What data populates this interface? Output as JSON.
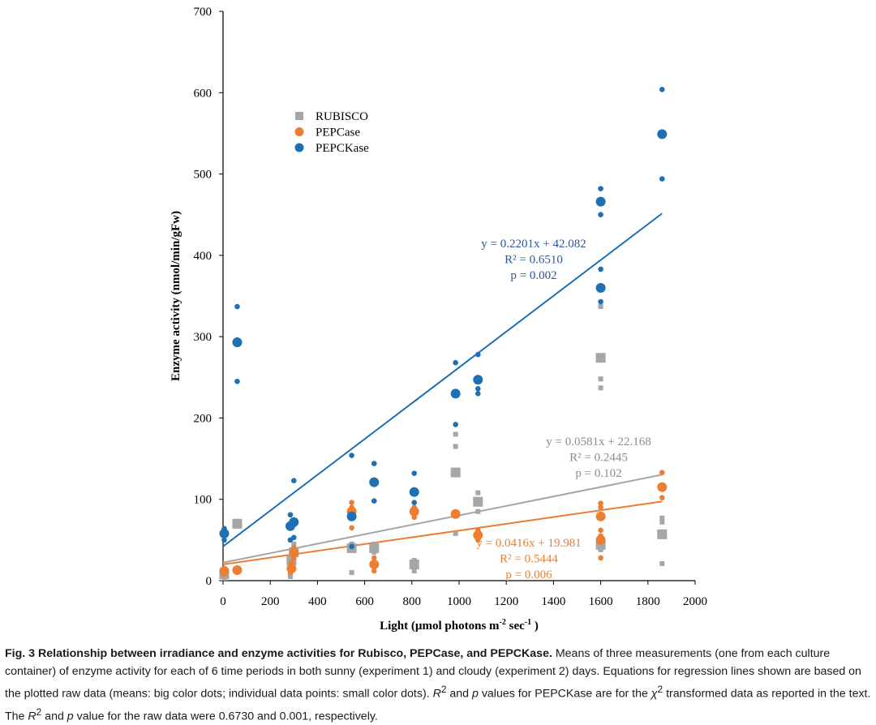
{
  "chart_data": {
    "type": "scatter",
    "xlabel": "Light (µmol photons m",
    "xlabel_sup": "-2",
    "xlabel_mid": " sec",
    "xlabel_sup2": "-1",
    "xlabel_end": " )",
    "ylabel": "Enzyme activity (nmol/min/gFw)",
    "xlim": [
      0,
      2000
    ],
    "ylim": [
      0,
      700
    ],
    "xticks": [
      0,
      200,
      400,
      600,
      800,
      1000,
      1200,
      1400,
      1600,
      1800,
      2000
    ],
    "yticks": [
      0,
      100,
      200,
      300,
      400,
      500,
      600,
      700
    ],
    "legend_position": "upper-left",
    "series": [
      {
        "name": "RUBISCO",
        "color": "#a6a6a6",
        "marker": "square",
        "means": [
          [
            5,
            8
          ],
          [
            60,
            70
          ],
          [
            290,
            25
          ],
          [
            300,
            35
          ],
          [
            545,
            40
          ],
          [
            640,
            40
          ],
          [
            810,
            20
          ],
          [
            985,
            133
          ],
          [
            1080,
            97
          ],
          [
            1600,
            274
          ],
          [
            1600,
            44
          ],
          [
            1860,
            57
          ]
        ],
        "points": [
          [
            5,
            3
          ],
          [
            5,
            12
          ],
          [
            60,
            67
          ],
          [
            60,
            73
          ],
          [
            285,
            5
          ],
          [
            290,
            20
          ],
          [
            300,
            30
          ],
          [
            300,
            45
          ],
          [
            545,
            10
          ],
          [
            545,
            45
          ],
          [
            640,
            35
          ],
          [
            640,
            45
          ],
          [
            810,
            12
          ],
          [
            810,
            25
          ],
          [
            985,
            58
          ],
          [
            985,
            165
          ],
          [
            985,
            180
          ],
          [
            1080,
            85
          ],
          [
            1080,
            108
          ],
          [
            1600,
            237
          ],
          [
            1600,
            248
          ],
          [
            1600,
            337
          ],
          [
            1600,
            38
          ],
          [
            1600,
            50
          ],
          [
            1860,
            21
          ],
          [
            1860,
            72
          ],
          [
            1860,
            77
          ]
        ],
        "regression": {
          "slope": 0.0581,
          "intercept": 22.168,
          "x_range": [
            0,
            1860
          ]
        },
        "equation": "y = 0.0581x + 22.168",
        "r2": "R² = 0.2445",
        "p": "p = 0.102"
      },
      {
        "name": "PEPCase",
        "color": "#ed7d31",
        "marker": "circle",
        "means": [
          [
            5,
            12
          ],
          [
            60,
            13
          ],
          [
            290,
            15
          ],
          [
            300,
            34
          ],
          [
            545,
            85
          ],
          [
            640,
            20
          ],
          [
            810,
            85
          ],
          [
            985,
            82
          ],
          [
            1080,
            56
          ],
          [
            1600,
            79
          ],
          [
            1600,
            50
          ],
          [
            1860,
            115
          ]
        ],
        "points": [
          [
            5,
            8
          ],
          [
            5,
            15
          ],
          [
            60,
            12
          ],
          [
            60,
            15
          ],
          [
            285,
            10
          ],
          [
            290,
            22
          ],
          [
            300,
            28
          ],
          [
            300,
            40
          ],
          [
            545,
            65
          ],
          [
            545,
            90
          ],
          [
            545,
            96
          ],
          [
            640,
            12
          ],
          [
            640,
            28
          ],
          [
            810,
            78
          ],
          [
            810,
            90
          ],
          [
            985,
            80
          ],
          [
            985,
            84
          ],
          [
            1080,
            50
          ],
          [
            1080,
            62
          ],
          [
            1600,
            28
          ],
          [
            1600,
            55
          ],
          [
            1600,
            62
          ],
          [
            1600,
            90
          ],
          [
            1600,
            95
          ],
          [
            1860,
            102
          ],
          [
            1860,
            133
          ]
        ],
        "regression": {
          "slope": 0.0416,
          "intercept": 19.981,
          "x_range": [
            0,
            1860
          ]
        },
        "equation": "y = 0.0416x + 19.981",
        "r2": "R² = 0.5444",
        "p": "p = 0.006"
      },
      {
        "name": "PEPCKase",
        "color": "#1f6fb5",
        "marker": "circle",
        "means": [
          [
            5,
            58
          ],
          [
            60,
            293
          ],
          [
            285,
            67
          ],
          [
            300,
            72
          ],
          [
            545,
            79
          ],
          [
            640,
            121
          ],
          [
            810,
            109
          ],
          [
            985,
            230
          ],
          [
            1080,
            247
          ],
          [
            1600,
            466
          ],
          [
            1600,
            360
          ],
          [
            1860,
            549
          ]
        ],
        "points": [
          [
            5,
            50
          ],
          [
            5,
            64
          ],
          [
            60,
            245
          ],
          [
            60,
            296
          ],
          [
            60,
            337
          ],
          [
            285,
            50
          ],
          [
            285,
            81
          ],
          [
            300,
            53
          ],
          [
            300,
            123
          ],
          [
            545,
            42
          ],
          [
            545,
            154
          ],
          [
            640,
            98
          ],
          [
            640,
            144
          ],
          [
            810,
            96
          ],
          [
            810,
            132
          ],
          [
            985,
            192
          ],
          [
            985,
            268
          ],
          [
            1080,
            230
          ],
          [
            1080,
            236
          ],
          [
            1080,
            278
          ],
          [
            1600,
            343
          ],
          [
            1600,
            383
          ],
          [
            1600,
            450
          ],
          [
            1600,
            482
          ],
          [
            1860,
            494
          ],
          [
            1860,
            604
          ]
        ],
        "regression": {
          "slope": 0.2201,
          "intercept": 42.082,
          "x_range": [
            0,
            1860
          ]
        },
        "equation": "y = 0.2201x + 42.082",
        "r2": "R² = 0.6510",
        "p": "p = 0.002"
      }
    ]
  },
  "caption": {
    "title": "Fig. 3 Relationship between irradiance and enzyme activities for Rubisco, PEPCase, and PEPCKase.",
    "text1": " Means of three measurements (one from each culture container) of enzyme activity for each of 6 time periods in both sunny (experiment 1) and cloudy (experiment 2) days. Equations for regression lines shown are based on the plotted raw data (means: big color dots; individual data points: small color dots). ",
    "r2_italic": "R",
    "r2_sup": "2",
    "text2": " and ",
    "p_italic": "p",
    "text3": " values for PEPCKase are for the ",
    "chi_italic": "χ",
    "chi_sup": "2",
    "text4": " transformed data as reported in the text. The ",
    "r2b_italic": "R",
    "r2b_sup": "2",
    "text5": " and ",
    "pb_italic": "p",
    "text6": " value for the raw data were 0.6730 and 0.001, respectively."
  }
}
